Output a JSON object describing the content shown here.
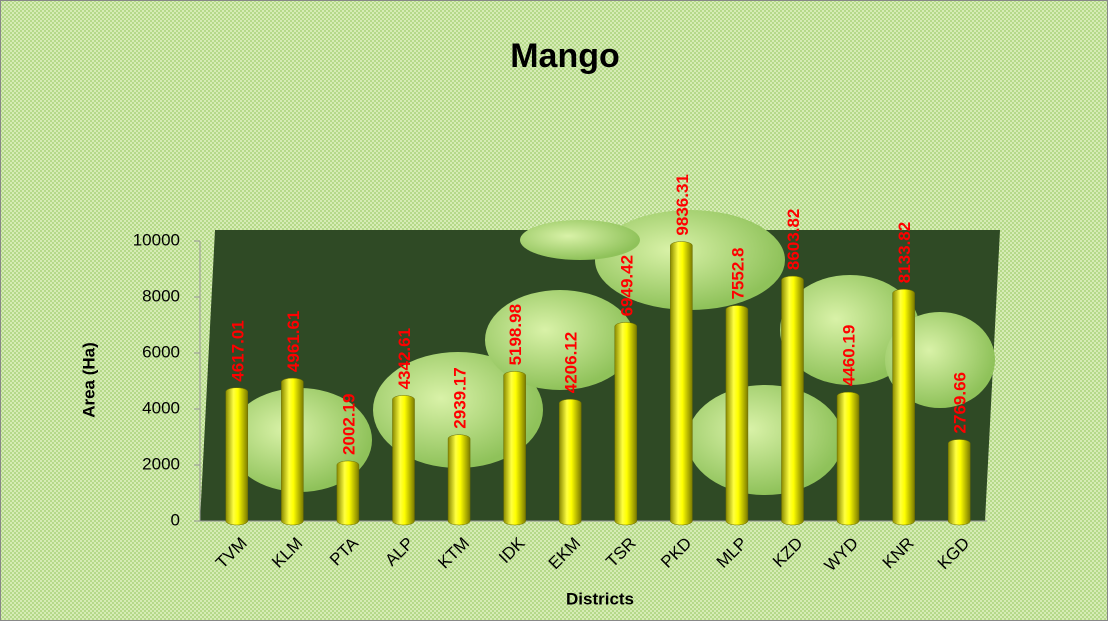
{
  "chart_data": {
    "type": "bar",
    "title": "Mango",
    "x_label": "Districts",
    "y_label": "Area (Ha)",
    "categories": [
      "TVM",
      "KLM",
      "PTA",
      "ALP",
      "KTM",
      "IDK",
      "EKM",
      "TSR",
      "PKD",
      "MLP",
      "KZD",
      "WYD",
      "KNR",
      "KGD"
    ],
    "values": [
      4617.01,
      4961.61,
      2002.19,
      4342.61,
      2939.17,
      5198.98,
      4206.12,
      6949.42,
      9836.31,
      7552.8,
      8603.82,
      4460.19,
      8133.82,
      2769.66
    ],
    "color": "#ffff00",
    "label_color": "#ff0000",
    "ylim": [
      0,
      10000
    ],
    "yticks": [
      0,
      2000,
      4000,
      6000,
      8000,
      10000
    ]
  }
}
